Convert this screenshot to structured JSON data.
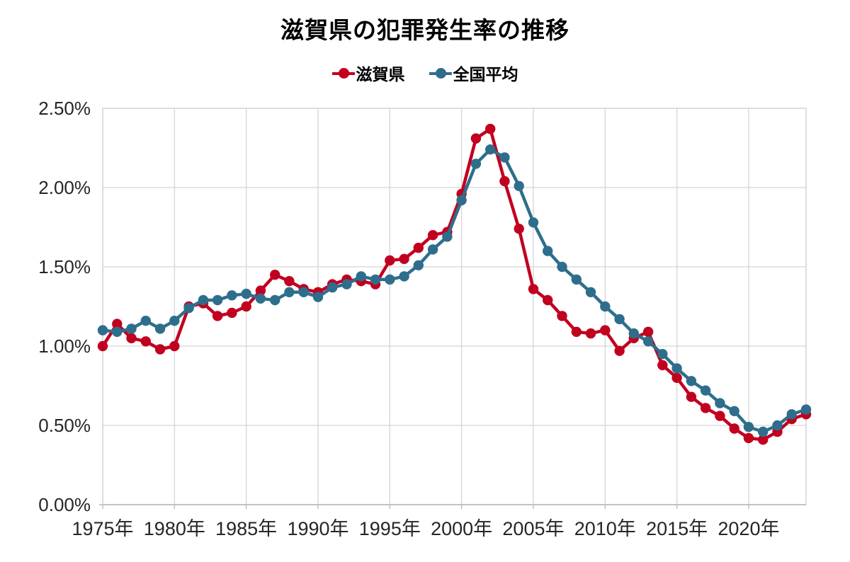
{
  "chart_data": {
    "type": "line",
    "title": "滋賀県の犯罪発生率の推移",
    "unit": "%",
    "grid": true,
    "legend_position": "top",
    "ylim": [
      0,
      2.5
    ],
    "grid_color": "#d5d5d5",
    "text_color": "#262626",
    "y_ticks": [
      {
        "value": 0.0,
        "label": "0.00%"
      },
      {
        "value": 0.5,
        "label": "0.50%"
      },
      {
        "value": 1.0,
        "label": "1.00%"
      },
      {
        "value": 1.5,
        "label": "1.50%"
      },
      {
        "value": 2.0,
        "label": "2.00%"
      },
      {
        "value": 2.5,
        "label": "2.50%"
      }
    ],
    "x_ticks": [
      {
        "year": 1975,
        "label": "1975年"
      },
      {
        "year": 1980,
        "label": "1980年"
      },
      {
        "year": 1985,
        "label": "1985年"
      },
      {
        "year": 1990,
        "label": "1990年"
      },
      {
        "year": 1995,
        "label": "1995年"
      },
      {
        "year": 2000,
        "label": "2000年"
      },
      {
        "year": 2005,
        "label": "2005年"
      },
      {
        "year": 2010,
        "label": "2010年"
      },
      {
        "year": 2015,
        "label": "2015年"
      },
      {
        "year": 2020,
        "label": "2020年"
      }
    ],
    "x": [
      1975,
      1976,
      1977,
      1978,
      1979,
      1980,
      1981,
      1982,
      1983,
      1984,
      1985,
      1986,
      1987,
      1988,
      1989,
      1990,
      1991,
      1992,
      1993,
      1994,
      1995,
      1996,
      1997,
      1998,
      1999,
      2000,
      2001,
      2002,
      2003,
      2004,
      2005,
      2006,
      2007,
      2008,
      2009,
      2010,
      2011,
      2012,
      2013,
      2014,
      2015,
      2016,
      2017,
      2018,
      2019,
      2020,
      2021,
      2022,
      2023,
      2024
    ],
    "series": [
      {
        "id": "shiga",
        "name": "滋賀県",
        "color": "#c1001f",
        "values": [
          1.0,
          1.14,
          1.05,
          1.03,
          0.98,
          1.0,
          1.25,
          1.27,
          1.19,
          1.21,
          1.25,
          1.35,
          1.45,
          1.41,
          1.36,
          1.34,
          1.39,
          1.42,
          1.41,
          1.39,
          1.54,
          1.55,
          1.62,
          1.7,
          1.72,
          1.96,
          2.31,
          2.37,
          2.04,
          1.74,
          1.36,
          1.29,
          1.19,
          1.09,
          1.08,
          1.1,
          0.97,
          1.05,
          1.09,
          0.88,
          0.8,
          0.68,
          0.61,
          0.56,
          0.48,
          0.42,
          0.41,
          0.46,
          0.54,
          0.57
        ]
      },
      {
        "id": "national",
        "name": "全国平均",
        "color": "#2e6e8c",
        "values": [
          1.1,
          1.09,
          1.11,
          1.16,
          1.11,
          1.16,
          1.24,
          1.29,
          1.29,
          1.32,
          1.33,
          1.3,
          1.29,
          1.34,
          1.34,
          1.31,
          1.37,
          1.39,
          1.44,
          1.42,
          1.42,
          1.44,
          1.51,
          1.61,
          1.69,
          1.92,
          2.15,
          2.24,
          2.19,
          2.01,
          1.78,
          1.6,
          1.5,
          1.42,
          1.34,
          1.25,
          1.17,
          1.08,
          1.03,
          0.95,
          0.86,
          0.78,
          0.72,
          0.64,
          0.59,
          0.49,
          0.46,
          0.5,
          0.57,
          0.6
        ]
      }
    ]
  }
}
